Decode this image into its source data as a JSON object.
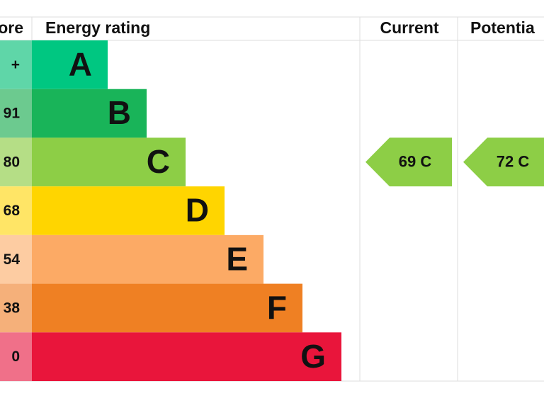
{
  "header": {
    "score": "ore",
    "rating": "Energy rating",
    "current": "Current",
    "potential": "Potentia"
  },
  "bands": [
    {
      "score": "+",
      "letter": "A",
      "color": "#00c781",
      "light": "#5fd6a8"
    },
    {
      "score": "91",
      "letter": "B",
      "color": "#19b459",
      "light": "#6cca8f"
    },
    {
      "score": "80",
      "letter": "C",
      "color": "#8dce46",
      "light": "#b5de86"
    },
    {
      "score": "68",
      "letter": "D",
      "color": "#ffd500",
      "light": "#ffe566"
    },
    {
      "score": "54",
      "letter": "E",
      "color": "#fcaa65",
      "light": "#fdcca2"
    },
    {
      "score": "38",
      "letter": "F",
      "color": "#ef8023",
      "light": "#f5b07a"
    },
    {
      "score": "0",
      "letter": "G",
      "color": "#e9153b",
      "light": "#f07089"
    }
  ],
  "current": {
    "label": "69 C",
    "band": 2
  },
  "potential": {
    "label": "72 C",
    "band": 2
  }
}
